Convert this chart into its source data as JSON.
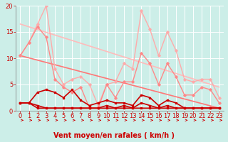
{
  "bg_color": "#cceee8",
  "grid_color": "#ffffff",
  "xlabel": "Vent moyen/en rafales ( km/h )",
  "xlim": [
    -0.5,
    23.5
  ],
  "ylim": [
    0,
    20
  ],
  "yticks": [
    0,
    5,
    10,
    15,
    20
  ],
  "xticks": [
    0,
    1,
    2,
    3,
    4,
    5,
    6,
    7,
    8,
    9,
    10,
    11,
    12,
    13,
    14,
    15,
    16,
    17,
    18,
    19,
    20,
    21,
    22,
    23
  ],
  "series": [
    {
      "x": [
        0,
        1,
        2,
        3,
        4,
        5,
        6,
        7,
        8,
        9,
        10,
        11,
        12,
        13,
        14,
        15,
        16,
        17,
        18,
        19,
        20,
        21,
        22,
        23
      ],
      "y": [
        10.5,
        13,
        16.5,
        20,
        8,
        5,
        6,
        6.5,
        5,
        1,
        5,
        5.5,
        9,
        8,
        19,
        15.5,
        10.5,
        15,
        11.5,
        6,
        5.5,
        6,
        6,
        2.5
      ],
      "color": "#ffaaaa",
      "lw": 1.0,
      "marker": "D",
      "ms": 1.8
    },
    {
      "x": [
        0,
        1,
        2,
        3,
        4,
        5,
        6,
        7,
        8,
        9,
        10,
        11,
        12,
        13,
        14,
        15,
        16,
        17,
        18,
        19,
        20,
        21,
        22,
        23
      ],
      "y": [
        10.5,
        13,
        16,
        14,
        6,
        4.5,
        3.5,
        4.5,
        0.5,
        0.5,
        5,
        2.5,
        5.5,
        5.5,
        11,
        9,
        5,
        9,
        6.5,
        3,
        3,
        4.5,
        4,
        1.5
      ],
      "color": "#ff8888",
      "lw": 1.0,
      "marker": "D",
      "ms": 1.8
    },
    {
      "x": [
        0,
        1,
        2,
        3,
        4,
        5,
        6,
        7,
        8,
        9,
        10,
        11,
        12,
        13,
        14,
        15,
        16,
        17,
        18,
        19,
        20,
        21,
        22,
        23
      ],
      "y": [
        1.5,
        1.5,
        3.5,
        4,
        3.5,
        2.5,
        4,
        2,
        1,
        1.5,
        2,
        1.5,
        1.5,
        1,
        3,
        2.5,
        1,
        2,
        1.5,
        0.5,
        0.5,
        0.5,
        0.5,
        0.5
      ],
      "color": "#cc0000",
      "lw": 1.2,
      "marker": "s",
      "ms": 2.0
    },
    {
      "x": [
        0,
        1,
        2,
        3,
        4,
        5,
        6,
        7,
        8,
        9,
        10,
        11,
        12,
        13,
        14,
        15,
        16,
        17,
        18,
        19,
        20,
        21,
        22,
        23
      ],
      "y": [
        1.5,
        1.5,
        1.0,
        0.5,
        0.5,
        0.5,
        0.5,
        0.5,
        0.5,
        0.5,
        0.5,
        0.5,
        1.0,
        0.5,
        1.5,
        1.0,
        0.5,
        1.0,
        0.5,
        0.5,
        0.5,
        0.5,
        0.5,
        0.5
      ],
      "color": "#cc0000",
      "lw": 1.2,
      "marker": "s",
      "ms": 2.0
    },
    {
      "x": [
        0,
        1,
        2,
        3,
        4,
        5,
        6,
        7,
        8,
        9,
        10,
        11,
        12,
        13,
        14,
        15,
        16,
        17,
        18,
        19,
        20,
        21,
        22,
        23
      ],
      "y": [
        1.5,
        1.5,
        0.5,
        0.5,
        0.5,
        0.5,
        0.5,
        0.5,
        0.5,
        0.5,
        1.0,
        0.5,
        0.5,
        0.5,
        0.5,
        0.5,
        0.5,
        0.5,
        0.5,
        0.5,
        0.5,
        0.5,
        0.5,
        0.5
      ],
      "color": "#cc0000",
      "lw": 1.2,
      "marker": "s",
      "ms": 2.0
    },
    {
      "x": [
        0,
        23
      ],
      "y": [
        16.5,
        4.5
      ],
      "color": "#ffbbbb",
      "lw": 1.2,
      "marker": null,
      "ms": 0
    },
    {
      "x": [
        0,
        23
      ],
      "y": [
        10.5,
        0.5
      ],
      "color": "#ff7777",
      "lw": 1.2,
      "marker": null,
      "ms": 0
    }
  ],
  "xlabel_fontsize": 7,
  "tick_fontsize": 6,
  "tick_color": "#cc0000",
  "xlabel_color": "#cc0000"
}
